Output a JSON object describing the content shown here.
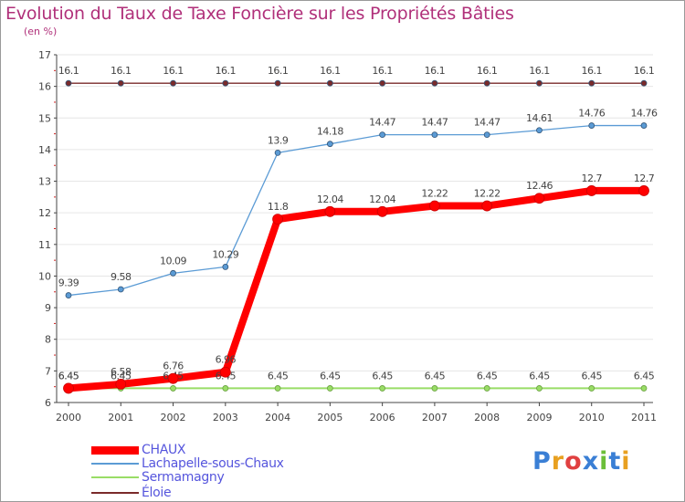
{
  "chart_data": {
    "type": "line",
    "title": "Evolution du Taux de Taxe Foncière sur les Propriétés Bâties",
    "unit_label": "(en %)",
    "xlabel": "",
    "ylabel": "(en %)",
    "x": [
      "2000",
      "2001",
      "2002",
      "2003",
      "2004",
      "2005",
      "2006",
      "2007",
      "2008",
      "2009",
      "2010",
      "2011"
    ],
    "ylim": [
      6,
      17
    ],
    "yticks": [
      "6",
      "7",
      "8",
      "9",
      "10",
      "11",
      "12",
      "13",
      "14",
      "15",
      "16",
      "17"
    ],
    "series": [
      {
        "name": "CHAUX",
        "color": "#ff0000",
        "values": [
          6.45,
          6.58,
          6.76,
          6.96,
          11.8,
          12.04,
          12.04,
          12.22,
          12.22,
          12.46,
          12.7,
          12.7
        ],
        "labels": [
          "6.45",
          "6.58",
          "6.76",
          "6.96",
          "11.8",
          "12.04",
          "12.04",
          "12.22",
          "12.22",
          "12.46",
          "12.7",
          "12.7"
        ]
      },
      {
        "name": "Lachapelle-sous-Chaux",
        "color": "#5b9bd5",
        "values": [
          9.39,
          9.58,
          10.09,
          10.29,
          13.9,
          14.18,
          14.47,
          14.47,
          14.47,
          14.61,
          14.76,
          14.76
        ],
        "labels": [
          "9.39",
          "9.58",
          "10.09",
          "10.29",
          "13.9",
          "14.18",
          "14.47",
          "14.47",
          "14.47",
          "14.61",
          "14.76",
          "14.76"
        ]
      },
      {
        "name": "Sermamagny",
        "color": "#99dd66",
        "values": [
          6.45,
          6.45,
          6.45,
          6.45,
          6.45,
          6.45,
          6.45,
          6.45,
          6.45,
          6.45,
          6.45,
          6.45
        ],
        "labels": [
          "6.45",
          "6.45",
          "6.45",
          "6.45",
          "6.45",
          "6.45",
          "6.45",
          "6.45",
          "6.45",
          "6.45",
          "6.45",
          "6.45"
        ]
      },
      {
        "name": "Éloie",
        "color": "#7a2a2a",
        "values": [
          16.1,
          16.1,
          16.1,
          16.1,
          16.1,
          16.1,
          16.1,
          16.1,
          16.1,
          16.1,
          16.1,
          16.1
        ],
        "labels": [
          "16.1",
          "16.1",
          "16.1",
          "16.1",
          "16.1",
          "16.1",
          "16.1",
          "16.1",
          "16.1",
          "16.1",
          "16.1",
          "16.1"
        ]
      }
    ]
  },
  "legend": [
    {
      "label": "CHAUX"
    },
    {
      "label": "Lachapelle-sous-Chaux"
    },
    {
      "label": "Sermamagny"
    },
    {
      "label": "Éloie"
    }
  ],
  "logo": {
    "text": "Proxiti",
    "colors": [
      "#3a7fd5",
      "#e8a020",
      "#e04040",
      "#3a7fd5",
      "#6cbf3a",
      "#3a7fd5",
      "#e8a020"
    ]
  }
}
